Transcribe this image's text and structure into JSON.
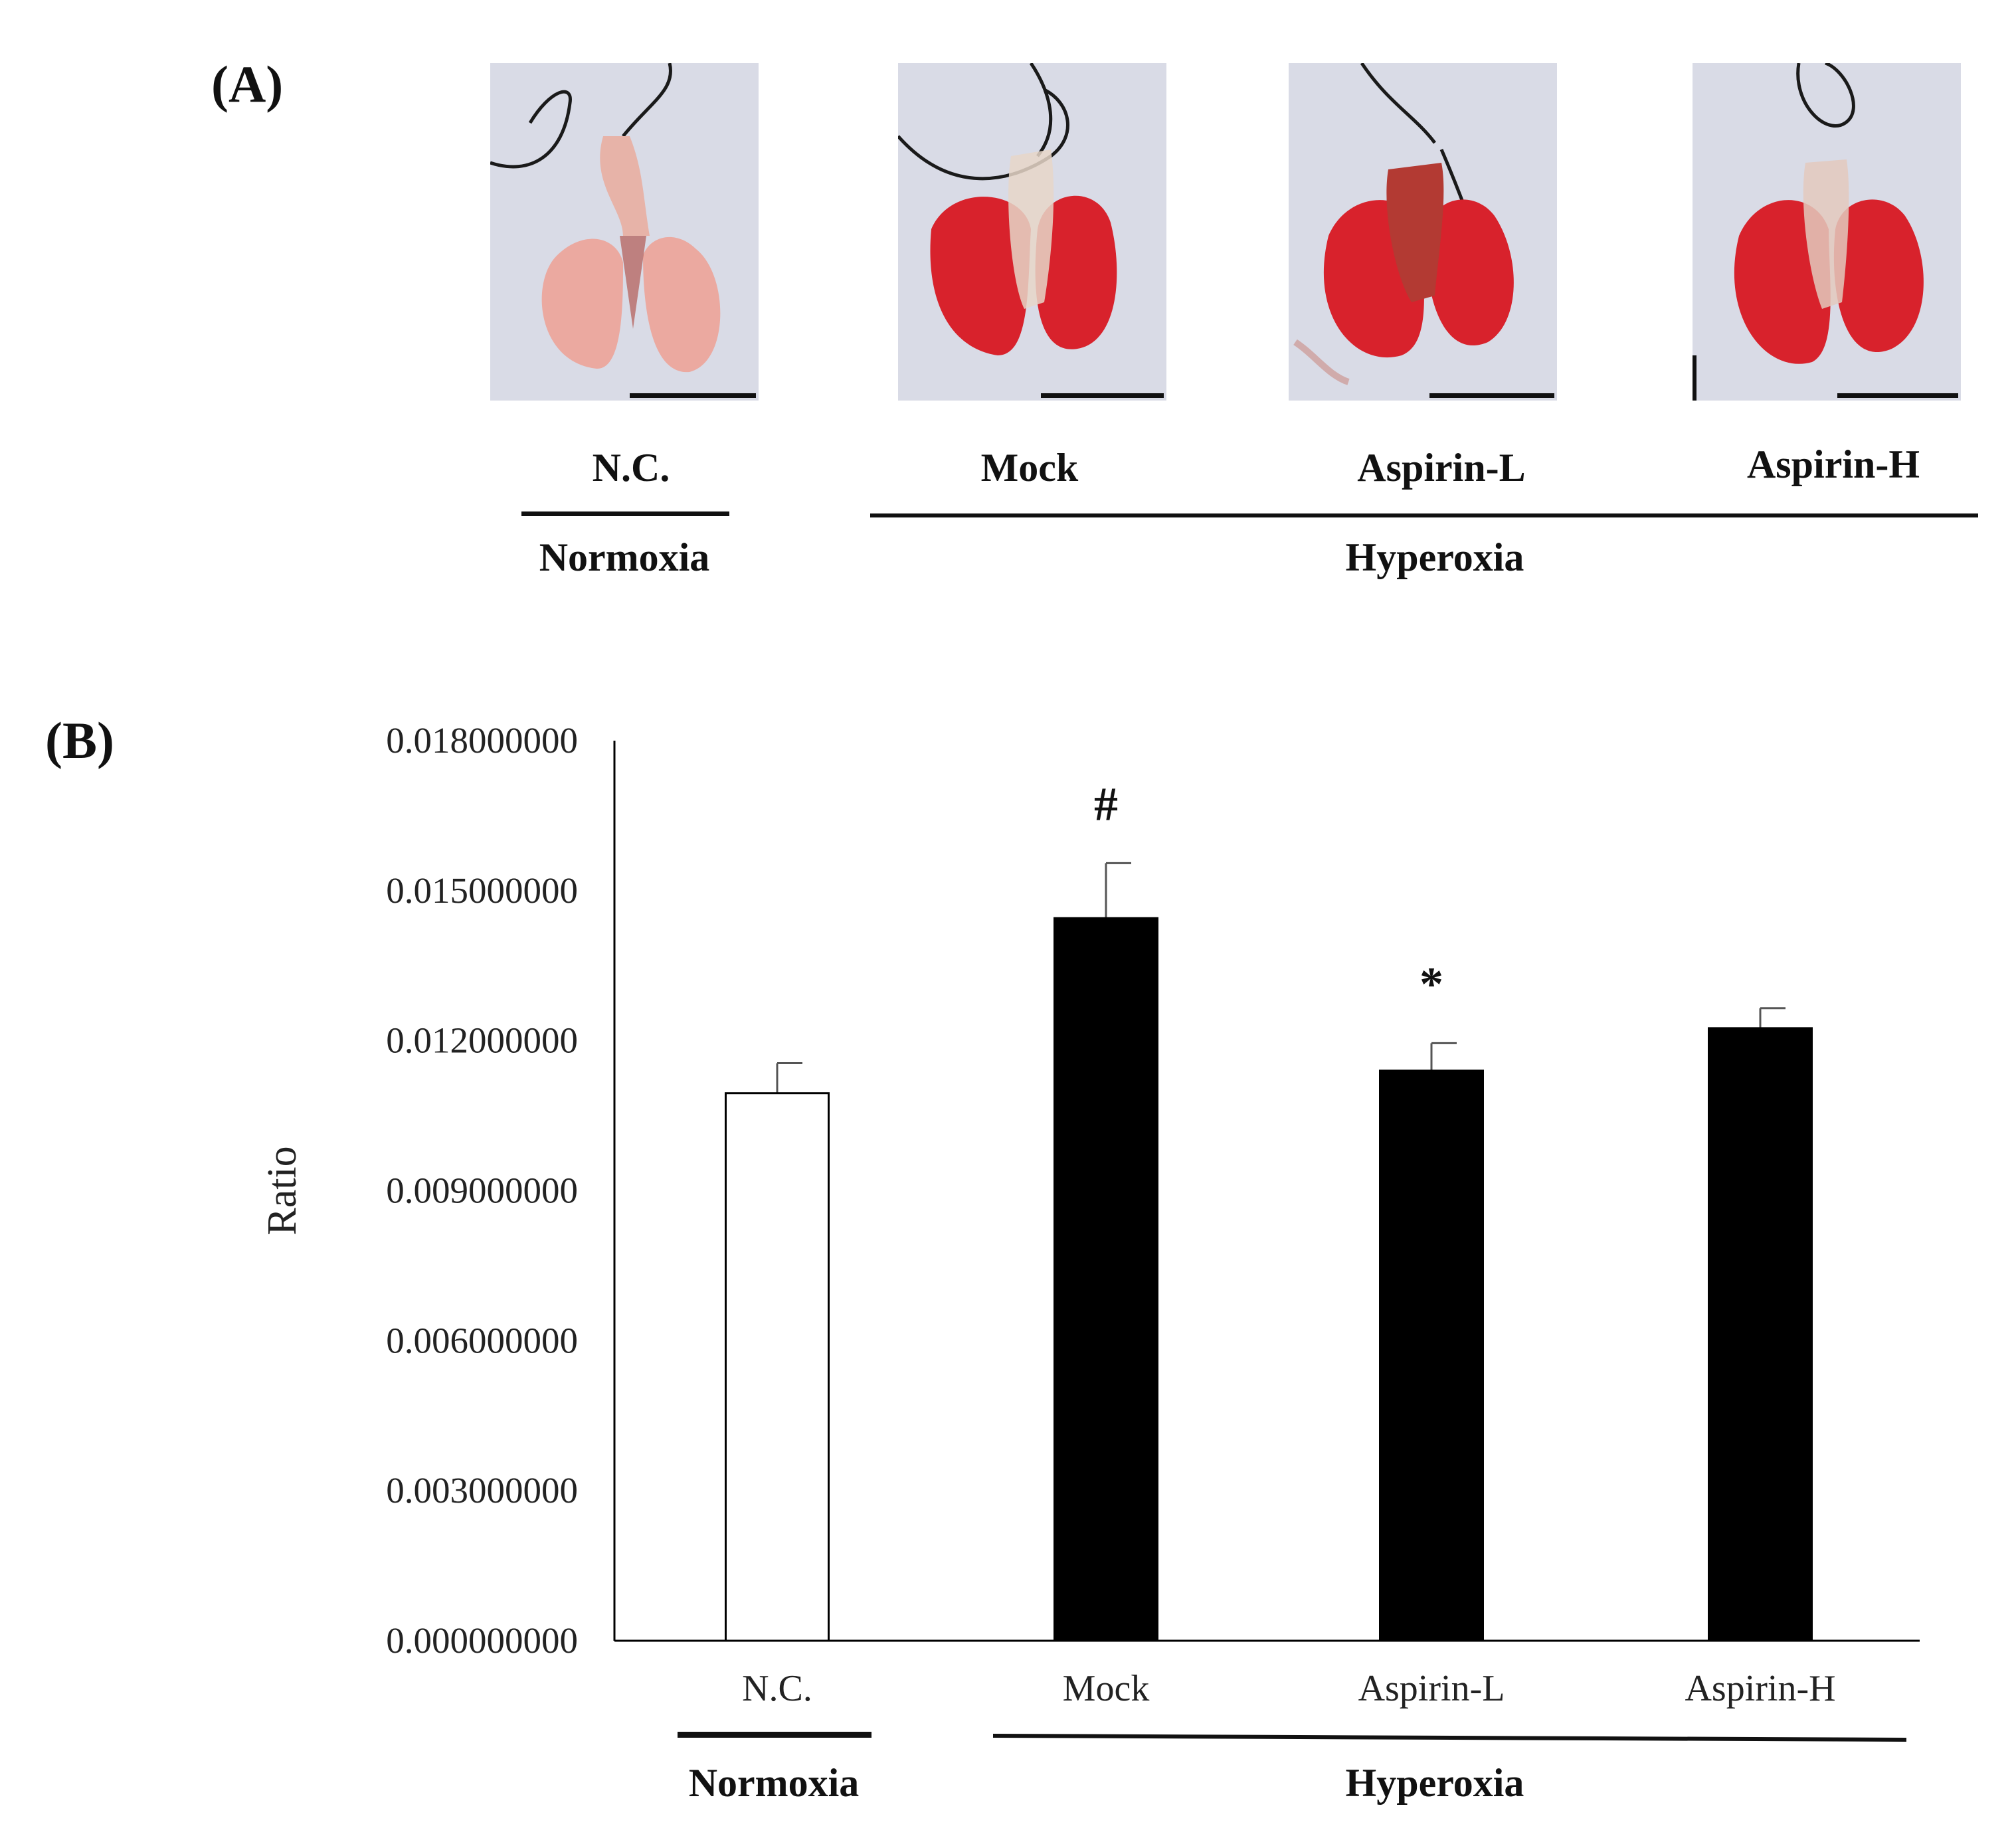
{
  "panel_a": {
    "label": "(A)",
    "photos": [
      {
        "id": "nc",
        "caption": "N.C.",
        "tone": "pale"
      },
      {
        "id": "mock",
        "caption": "Mock",
        "tone": "red"
      },
      {
        "id": "aspl",
        "caption": "Aspirin-L",
        "tone": "red"
      },
      {
        "id": "asph",
        "caption": "Aspirin-H",
        "tone": "red"
      }
    ],
    "group_normoxia": "Normoxia",
    "group_hyperoxia": "Hyperoxia"
  },
  "panel_b": {
    "label": "(B)",
    "group_normoxia": "Normoxia",
    "group_hyperoxia": "Hyperoxia"
  },
  "colors": {
    "bar_control": "#ffffff",
    "bar_treated": "#000000",
    "axis": "#000000",
    "tissue_pale": "#eba9a0",
    "tissue_red": "#d8222c"
  },
  "chart_data": {
    "type": "bar",
    "title": "",
    "xlabel": "",
    "ylabel": "Ratio",
    "ylim": [
      0,
      0.018
    ],
    "yticks": [
      0.0,
      0.003,
      0.006,
      0.009,
      0.012,
      0.015,
      0.018
    ],
    "ytick_labels": [
      "0.000000000",
      "0.003000000",
      "0.006000000",
      "0.009000000",
      "0.012000000",
      "0.015000000",
      "0.018000000"
    ],
    "categories": [
      "N.C.",
      "Mock",
      "Aspirin-L",
      "Aspirin-H"
    ],
    "values": [
      0.01095,
      0.01445,
      0.0114,
      0.01225
    ],
    "errors": [
      0.0006,
      0.0011,
      0.00055,
      0.0004
    ],
    "annotations": [
      "",
      "#",
      "*",
      ""
    ],
    "bar_fill": [
      "white",
      "black",
      "black",
      "black"
    ],
    "grid": false
  }
}
